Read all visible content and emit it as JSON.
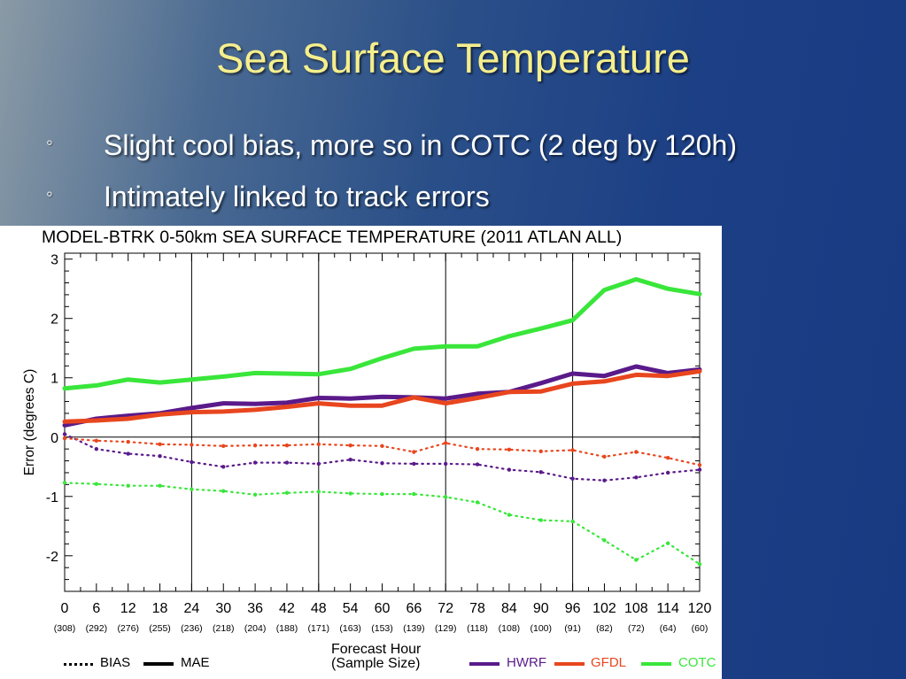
{
  "slide": {
    "title": "Sea Surface Temperature",
    "bullet_marker": "◦",
    "bullets": [
      "Slight cool bias, more so in COTC (2 deg by 120h)",
      "Intimately linked to track errors"
    ]
  },
  "colors": {
    "background_start": "#8a9aa6",
    "background_end": "#183a82",
    "title": "#f5ee8c",
    "bullets": "#ffffff",
    "HWRF": "#5a1a8a",
    "GFDL": "#e8461e",
    "COTC": "#39e63a"
  },
  "chart_data": {
    "type": "line",
    "title": "MODEL-BTRK 0-50km SEA SURFACE TEMPERATURE (2011 ATLAN ALL)",
    "xlabel": "Forecast Hour",
    "xlabel_sub": "(Sample Size)",
    "ylabel": "Error (degrees C)",
    "ylim": [
      -2.6,
      3.1
    ],
    "yticks": [
      -2,
      -1,
      0,
      1,
      2,
      3
    ],
    "x": [
      0,
      6,
      12,
      18,
      24,
      30,
      36,
      42,
      48,
      54,
      60,
      66,
      72,
      78,
      84,
      90,
      96,
      102,
      108,
      114,
      120
    ],
    "sample_sizes": [
      "(308)",
      "(292)",
      "(276)",
      "(255)",
      "(236)",
      "(218)",
      "(204)",
      "(188)",
      "(171)",
      "(163)",
      "(153)",
      "(139)",
      "(129)",
      "(118)",
      "(108)",
      "(100)",
      "(91)",
      "(82)",
      "(72)",
      "(64)",
      "(60)"
    ],
    "vertical_gridlines": [
      24,
      48,
      72,
      96
    ],
    "series": [
      {
        "name": "HWRF",
        "metric": "MAE",
        "values": [
          0.2,
          0.31,
          0.36,
          0.4,
          0.49,
          0.57,
          0.56,
          0.58,
          0.66,
          0.65,
          0.68,
          0.67,
          0.65,
          0.73,
          0.76,
          0.91,
          1.07,
          1.03,
          1.19,
          1.08,
          1.14
        ]
      },
      {
        "name": "GFDL",
        "metric": "MAE",
        "values": [
          0.26,
          0.28,
          0.31,
          0.38,
          0.42,
          0.43,
          0.46,
          0.51,
          0.57,
          0.53,
          0.53,
          0.67,
          0.57,
          0.66,
          0.76,
          0.77,
          0.9,
          0.94,
          1.05,
          1.03,
          1.11
        ]
      },
      {
        "name": "COTC",
        "metric": "MAE",
        "values": [
          0.82,
          0.87,
          0.97,
          0.92,
          0.97,
          1.02,
          1.08,
          1.07,
          1.06,
          1.15,
          1.33,
          1.49,
          1.53,
          1.53,
          1.7,
          1.83,
          1.97,
          2.48,
          2.66,
          2.5,
          2.41
        ]
      },
      {
        "name": "HWRF",
        "metric": "BIAS",
        "values": [
          0.05,
          -0.2,
          -0.28,
          -0.32,
          -0.42,
          -0.5,
          -0.43,
          -0.43,
          -0.45,
          -0.38,
          -0.44,
          -0.45,
          -0.45,
          -0.46,
          -0.55,
          -0.59,
          -0.7,
          -0.73,
          -0.68,
          -0.6,
          -0.55
        ]
      },
      {
        "name": "GFDL",
        "metric": "BIAS",
        "values": [
          -0.02,
          -0.06,
          -0.08,
          -0.12,
          -0.13,
          -0.15,
          -0.14,
          -0.14,
          -0.12,
          -0.14,
          -0.15,
          -0.25,
          -0.1,
          -0.2,
          -0.21,
          -0.24,
          -0.22,
          -0.33,
          -0.25,
          -0.35,
          -0.47
        ]
      },
      {
        "name": "COTC",
        "metric": "BIAS",
        "values": [
          -0.77,
          -0.79,
          -0.82,
          -0.82,
          -0.88,
          -0.91,
          -0.97,
          -0.94,
          -0.92,
          -0.95,
          -0.96,
          -0.96,
          -1.01,
          -1.1,
          -1.31,
          -1.4,
          -1.42,
          -1.74,
          -2.07,
          -1.79,
          -2.14
        ]
      }
    ],
    "legend": {
      "styles": [
        {
          "label": "BIAS",
          "line": "dotted"
        },
        {
          "label": "MAE",
          "line": "solid"
        }
      ],
      "models": [
        "HWRF",
        "GFDL",
        "COTC"
      ],
      "placement": "bottom"
    },
    "grid": true
  }
}
